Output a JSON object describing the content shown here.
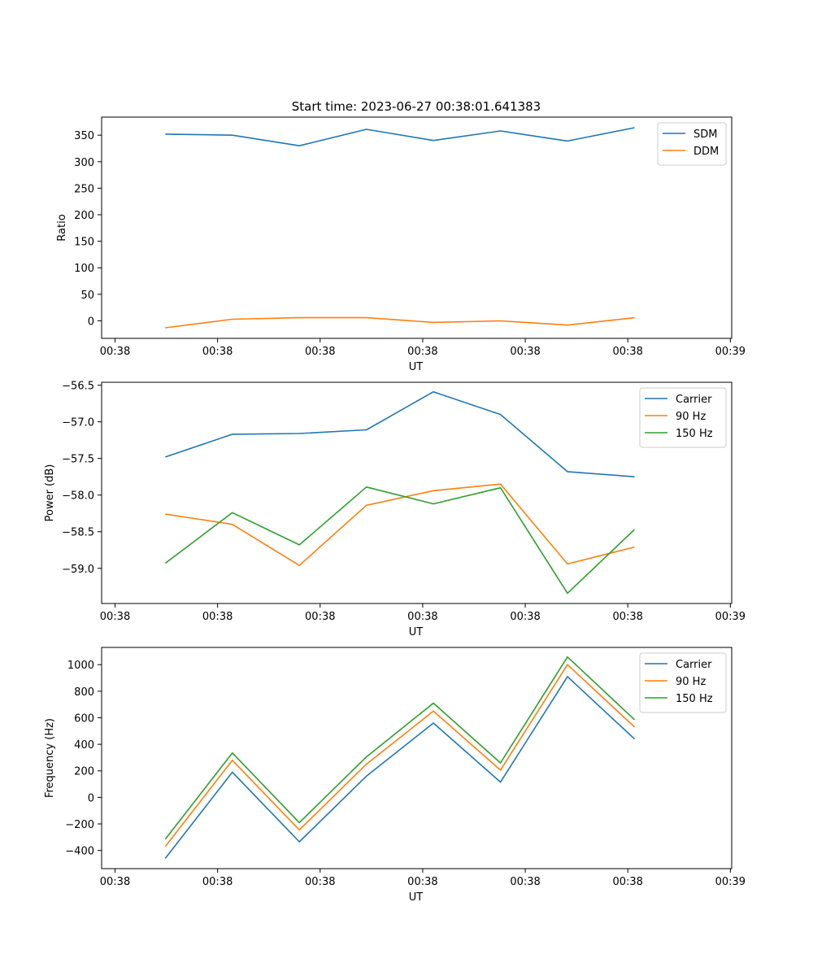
{
  "figure": {
    "title": "Start time: 2023-06-27 00:38:01.641383"
  },
  "chart_data": [
    {
      "type": "line",
      "xlabel": "UT",
      "ylabel": "Ratio",
      "x": [
        0,
        1,
        2,
        3,
        4,
        5,
        6,
        7
      ],
      "x_ticks": [
        -0.75,
        0.78,
        2.31,
        3.84,
        5.37,
        6.9,
        8.43
      ],
      "x_tick_labels": [
        "00:38",
        "00:38",
        "00:38",
        "00:38",
        "00:38",
        "00:38",
        "00:39"
      ],
      "xlim": [
        -0.95,
        8.45
      ],
      "ylim": [
        -33,
        384
      ],
      "y_ticks": [
        0,
        50,
        100,
        150,
        200,
        250,
        300,
        350
      ],
      "legend": {
        "placement": "top-right"
      },
      "grid": false,
      "series": [
        {
          "name": "SDM",
          "color": "#1f77b4",
          "values": [
            352,
            350,
            330,
            361,
            340,
            358,
            339,
            364
          ]
        },
        {
          "name": "DDM",
          "color": "#ff7f0e",
          "values": [
            -13,
            3,
            6,
            6,
            -3,
            0,
            -8,
            6
          ]
        }
      ]
    },
    {
      "type": "line",
      "xlabel": "UT",
      "ylabel": "Power (dB)",
      "x": [
        0,
        1,
        2,
        3,
        4,
        5,
        6,
        7
      ],
      "x_ticks": [
        -0.75,
        0.78,
        2.31,
        3.84,
        5.37,
        6.9,
        8.43
      ],
      "x_tick_labels": [
        "00:38",
        "00:38",
        "00:38",
        "00:38",
        "00:38",
        "00:38",
        "00:39"
      ],
      "xlim": [
        -0.95,
        8.45
      ],
      "ylim": [
        -59.48,
        -56.46
      ],
      "y_ticks": [
        -59.0,
        -58.5,
        -58.0,
        -57.5,
        -57.0,
        -56.5
      ],
      "y_tick_labels": [
        "−59.0",
        "−58.5",
        "−58.0",
        "−57.5",
        "−57.0",
        "−56.5"
      ],
      "legend": {
        "placement": "top-right"
      },
      "grid": false,
      "series": [
        {
          "name": "Carrier",
          "color": "#1f77b4",
          "values": [
            -57.48,
            -57.17,
            -57.16,
            -57.11,
            -56.59,
            -56.9,
            -57.68,
            -57.75
          ]
        },
        {
          "name": "90 Hz",
          "color": "#ff7f0e",
          "values": [
            -58.26,
            -58.4,
            -58.96,
            -58.14,
            -57.94,
            -57.85,
            -58.94,
            -58.71
          ]
        },
        {
          "name": "150 Hz",
          "color": "#2ca02c",
          "values": [
            -58.93,
            -58.24,
            -58.68,
            -57.89,
            -58.12,
            -57.9,
            -59.34,
            -58.47
          ]
        }
      ]
    },
    {
      "type": "line",
      "xlabel": "UT",
      "ylabel": "Frequency (Hz)",
      "x": [
        0,
        1,
        2,
        3,
        4,
        5,
        6,
        7
      ],
      "x_ticks": [
        -0.75,
        0.78,
        2.31,
        3.84,
        5.37,
        6.9,
        8.43
      ],
      "x_tick_labels": [
        "00:38",
        "00:38",
        "00:38",
        "00:38",
        "00:38",
        "00:38",
        "00:39"
      ],
      "xlim": [
        -0.95,
        8.45
      ],
      "ylim": [
        -537,
        1130
      ],
      "y_ticks": [
        -400,
        -200,
        0,
        200,
        400,
        600,
        800,
        1000
      ],
      "y_tick_labels": [
        "−400",
        "−200",
        "0",
        "200",
        "400",
        "600",
        "800",
        "1000"
      ],
      "legend": {
        "placement": "top-right"
      },
      "grid": false,
      "series": [
        {
          "name": "Carrier",
          "color": "#1f77b4",
          "values": [
            -460,
            190,
            -335,
            160,
            560,
            115,
            910,
            440
          ]
        },
        {
          "name": "90 Hz",
          "color": "#ff7f0e",
          "values": [
            -370,
            280,
            -245,
            250,
            650,
            205,
            1000,
            530
          ]
        },
        {
          "name": "150 Hz",
          "color": "#2ca02c",
          "values": [
            -315,
            335,
            -190,
            305,
            710,
            260,
            1058,
            585
          ]
        }
      ]
    }
  ]
}
